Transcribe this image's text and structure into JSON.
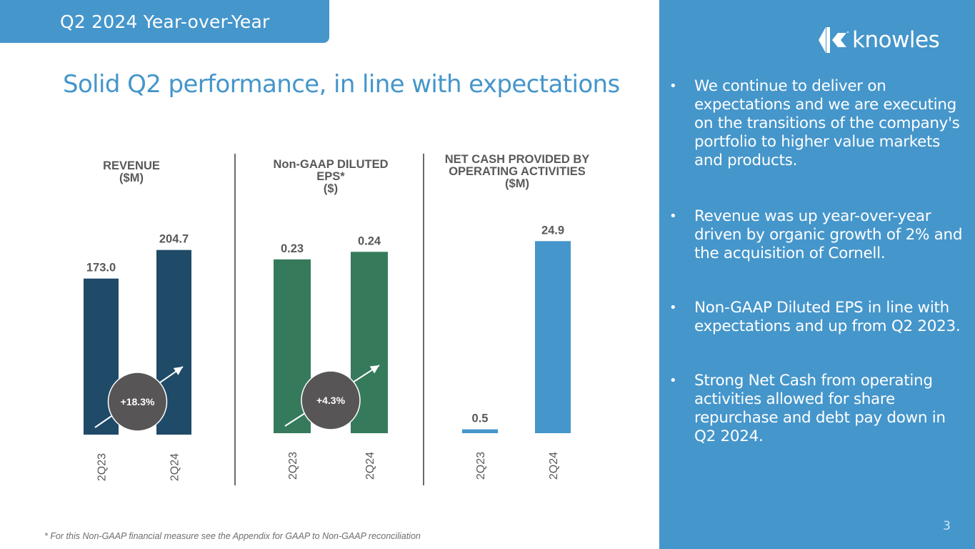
{
  "header": {
    "tab_label": "Q2 2024 Year-over-Year",
    "slide_title": "Solid Q2 performance, in line with expectations"
  },
  "brand": {
    "logo_text": "knowles",
    "logo_icon": "knowles-k-chevron-icon",
    "accent_color": "#4596cb"
  },
  "bullets": [
    "We continue to deliver on expectations and we are executing on the transitions of the company's portfolio to higher value markets and products.",
    "Revenue was up year-over-year driven by organic growth of 2% and the acquisition of Cornell.",
    "Non-GAAP Diluted EPS in line with expectations and up from Q2 2023.",
    "Strong Net Cash from operating activities allowed for share repurchase and debt pay down in Q2 2024."
  ],
  "bullet_glyph": "•",
  "footnote": "* For this Non-GAAP financial measure see the Appendix for GAAP to Non-GAAP reconciliation",
  "page_number": "3",
  "chart_data": [
    {
      "type": "bar",
      "id": "revenue",
      "title_lines": [
        "REVENUE",
        "($M)"
      ],
      "categories": [
        "2Q23",
        "2Q24"
      ],
      "values": [
        173.0,
        204.7
      ],
      "value_labels": [
        "173.0",
        "204.7"
      ],
      "color": "#1f4a68",
      "change_badge": "+18.3%",
      "change_direction": "up",
      "ylim": [
        0,
        210
      ]
    },
    {
      "type": "bar",
      "id": "eps",
      "title_lines": [
        "Non-GAAP DILUTED",
        "EPS*",
        "($)"
      ],
      "categories": [
        "2Q23",
        "2Q24"
      ],
      "values": [
        0.23,
        0.24
      ],
      "value_labels": [
        "0.23",
        "0.24"
      ],
      "color": "#367a5c",
      "change_badge": "+4.3%",
      "change_direction": "up",
      "ylim": [
        0,
        0.245
      ]
    },
    {
      "type": "bar",
      "id": "net-cash",
      "title_lines": [
        "NET CASH PROVIDED BY",
        "OPERATING ACTIVITIES",
        "($M)"
      ],
      "categories": [
        "2Q23",
        "2Q24"
      ],
      "values": [
        0.5,
        24.9
      ],
      "value_labels": [
        "0.5",
        "24.9"
      ],
      "color": "#4596cb",
      "change_badge": null,
      "ylim": [
        0,
        25.3
      ]
    }
  ]
}
